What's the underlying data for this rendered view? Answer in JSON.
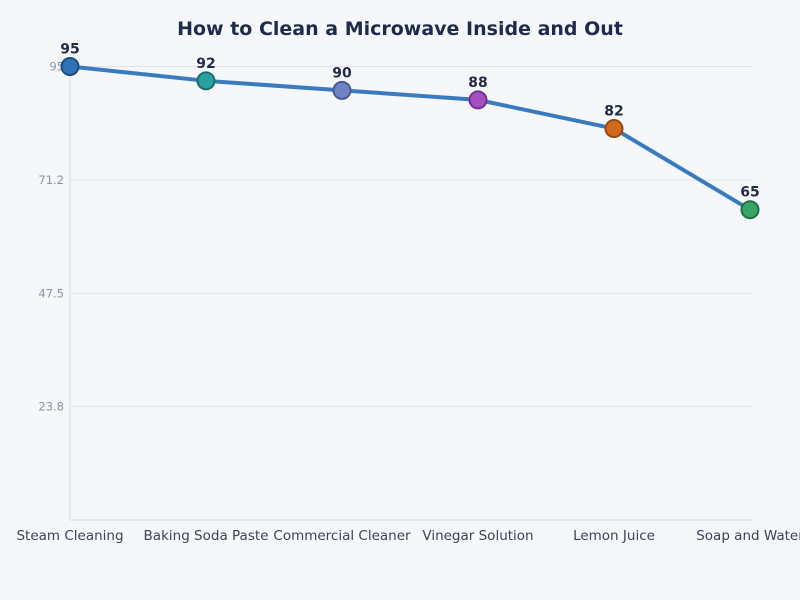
{
  "chart_data": {
    "type": "line",
    "title": "How to Clean a Microwave Inside and Out",
    "categories": [
      "Steam Cleaning",
      "Baking Soda Paste",
      "Commercial Cleaner",
      "Vinegar Solution",
      "Lemon Juice",
      "Soap and Water"
    ],
    "values": [
      95,
      92,
      90,
      88,
      82,
      65
    ],
    "xlabel": "",
    "ylabel": "",
    "ylim": [
      0,
      95
    ],
    "y_tick_values": [
      95,
      71.2,
      47.5,
      23.8
    ],
    "y_tick_labels": [
      "95",
      "71.2",
      "47.5",
      "23.8"
    ],
    "grid": true,
    "legend_position": "none",
    "line_color": "#3a7bbf",
    "marker_fills": [
      "#2e73b6",
      "#2aa0a0",
      "#7084c4",
      "#a44ec0",
      "#d2691f",
      "#38a567"
    ],
    "marker_strokes": [
      "#1d4e7e",
      "#1a6e6e",
      "#4a5896",
      "#722f8e",
      "#96480f",
      "#20713f"
    ],
    "colors": {
      "background": "#f5f7fa",
      "grid": "#dfe2e7",
      "axis": "#d5d9e1",
      "title": "#1e2b4b",
      "value_label": "#222c42",
      "x_tick": "#3c4355",
      "y_tick": "#8d92a2"
    }
  }
}
